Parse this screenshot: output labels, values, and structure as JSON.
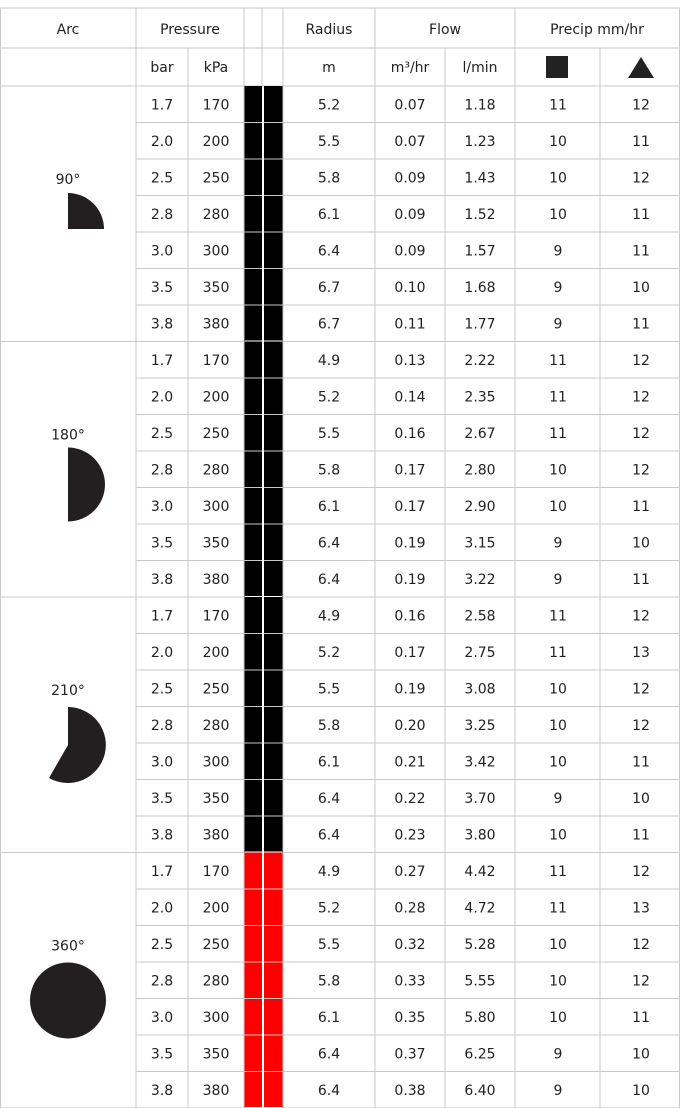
{
  "header": {
    "arc": "Arc",
    "pressure": "Pressure",
    "radius": "Radius",
    "flow": "Flow",
    "precip": "Precip mm/hr",
    "units": {
      "bar": "bar",
      "kpa": "kPa",
      "radius": "m",
      "flow_m3": "m³/hr",
      "flow_l": "l/min"
    }
  },
  "table": {
    "groups": [
      {
        "arc": "90°",
        "color": "#000000",
        "rows": [
          [
            "1.7",
            "170",
            "5.2",
            "0.07",
            "1.18",
            "11",
            "12"
          ],
          [
            "2.0",
            "200",
            "5.5",
            "0.07",
            "1.23",
            "10",
            "11"
          ],
          [
            "2.5",
            "250",
            "5.8",
            "0.09",
            "1.43",
            "10",
            "12"
          ],
          [
            "2.8",
            "280",
            "6.1",
            "0.09",
            "1.52",
            "10",
            "11"
          ],
          [
            "3.0",
            "300",
            "6.4",
            "0.09",
            "1.57",
            "9",
            "11"
          ],
          [
            "3.5",
            "350",
            "6.7",
            "0.10",
            "1.68",
            "9",
            "10"
          ],
          [
            "3.8",
            "380",
            "6.7",
            "0.11",
            "1.77",
            "9",
            "11"
          ]
        ]
      },
      {
        "arc": "180°",
        "color": "#000000",
        "rows": [
          [
            "1.7",
            "170",
            "4.9",
            "0.13",
            "2.22",
            "11",
            "12"
          ],
          [
            "2.0",
            "200",
            "5.2",
            "0.14",
            "2.35",
            "11",
            "12"
          ],
          [
            "2.5",
            "250",
            "5.5",
            "0.16",
            "2.67",
            "11",
            "12"
          ],
          [
            "2.8",
            "280",
            "5.8",
            "0.17",
            "2.80",
            "10",
            "12"
          ],
          [
            "3.0",
            "300",
            "6.1",
            "0.17",
            "2.90",
            "10",
            "11"
          ],
          [
            "3.5",
            "350",
            "6.4",
            "0.19",
            "3.15",
            "9",
            "10"
          ],
          [
            "3.8",
            "380",
            "6.4",
            "0.19",
            "3.22",
            "9",
            "11"
          ]
        ]
      },
      {
        "arc": "210°",
        "color": "#000000",
        "rows": [
          [
            "1.7",
            "170",
            "4.9",
            "0.16",
            "2.58",
            "11",
            "12"
          ],
          [
            "2.0",
            "200",
            "5.2",
            "0.17",
            "2.75",
            "11",
            "13"
          ],
          [
            "2.5",
            "250",
            "5.5",
            "0.19",
            "3.08",
            "10",
            "12"
          ],
          [
            "2.8",
            "280",
            "5.8",
            "0.20",
            "3.25",
            "10",
            "12"
          ],
          [
            "3.0",
            "300",
            "6.1",
            "0.21",
            "3.42",
            "10",
            "11"
          ],
          [
            "3.5",
            "350",
            "6.4",
            "0.22",
            "3.70",
            "9",
            "10"
          ],
          [
            "3.8",
            "380",
            "6.4",
            "0.23",
            "3.80",
            "10",
            "11"
          ]
        ]
      },
      {
        "arc": "360°",
        "color": "#ff0000",
        "rows": [
          [
            "1.7",
            "170",
            "4.9",
            "0.27",
            "4.42",
            "11",
            "12"
          ],
          [
            "2.0",
            "200",
            "5.2",
            "0.28",
            "4.72",
            "11",
            "13"
          ],
          [
            "2.5",
            "250",
            "5.5",
            "0.32",
            "5.28",
            "10",
            "12"
          ],
          [
            "2.8",
            "280",
            "5.8",
            "0.33",
            "5.55",
            "10",
            "12"
          ],
          [
            "3.0",
            "300",
            "6.1",
            "0.35",
            "5.80",
            "10",
            "11"
          ],
          [
            "3.5",
            "350",
            "6.4",
            "0.37",
            "6.25",
            "9",
            "10"
          ],
          [
            "3.8",
            "380",
            "6.4",
            "0.38",
            "6.40",
            "9",
            "10"
          ]
        ]
      }
    ]
  }
}
